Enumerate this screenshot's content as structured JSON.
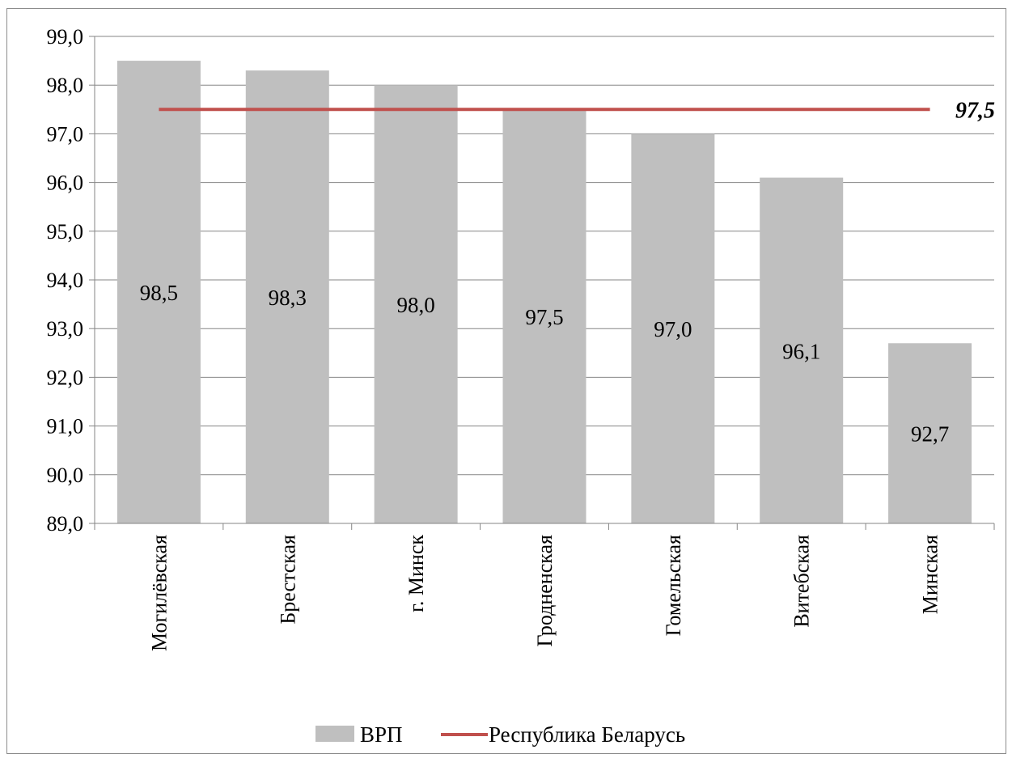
{
  "chart_data": {
    "type": "bar",
    "categories": [
      "Могилёвская",
      "Брестская",
      "г. Минск",
      "Гродненская",
      "Гомельская",
      "Витебская",
      "Минская"
    ],
    "series": [
      {
        "name": "ВРП",
        "type": "bar",
        "values": [
          98.5,
          98.3,
          98.0,
          97.5,
          97.0,
          96.1,
          92.7
        ],
        "value_labels": [
          "98,5",
          "98,3",
          "98,0",
          "97,5",
          "97,0",
          "96,1",
          "92,7"
        ],
        "color": "#bfbfbf"
      },
      {
        "name": "Республика Беларусь",
        "type": "line",
        "values": [
          97.5,
          97.5,
          97.5,
          97.5,
          97.5,
          97.5,
          97.5
        ],
        "end_label": "97,5",
        "color": "#c0504d"
      }
    ],
    "ylim": [
      89.0,
      99.0
    ],
    "y_ticks": [
      89.0,
      90.0,
      91.0,
      92.0,
      93.0,
      94.0,
      95.0,
      96.0,
      97.0,
      98.0,
      99.0
    ],
    "y_tick_labels": [
      "89,0",
      "90,0",
      "91,0",
      "92,0",
      "93,0",
      "94,0",
      "95,0",
      "96,0",
      "97,0",
      "98,0",
      "99,0"
    ],
    "grid": true,
    "legend_position": "bottom",
    "title": "",
    "xlabel": "",
    "ylabel": ""
  },
  "colors": {
    "gridline": "#868686",
    "axis": "#868686"
  }
}
